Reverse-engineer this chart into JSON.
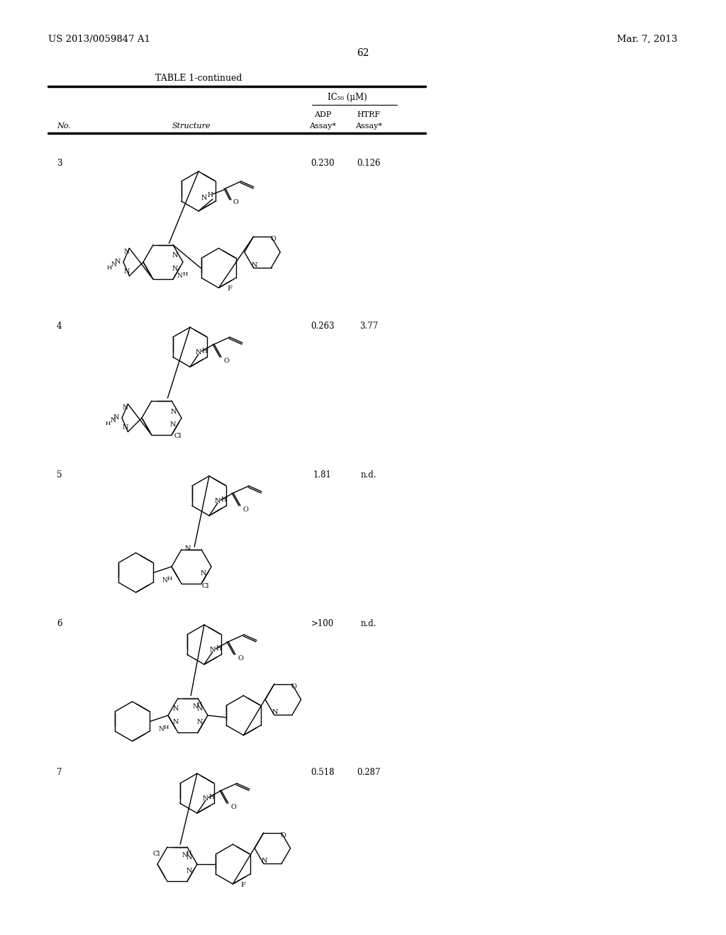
{
  "page_left": "US 2013/0059847 A1",
  "page_right": "Mar. 7, 2013",
  "page_number": "62",
  "table_title": "TABLE 1-continued",
  "ic50_header": "IC₅₀ (μM)",
  "adp_header": "ADP",
  "htrf_header": "HTRF",
  "assay1": "Assay*",
  "assay2": "Assay*",
  "col_no": "No.",
  "col_structure": "Structure",
  "rows": [
    {
      "no": "3",
      "adp": "0.230",
      "htrf": "0.126"
    },
    {
      "no": "4",
      "adp": "0.263",
      "htrf": "3.77"
    },
    {
      "no": "5",
      "adp": "1.81",
      "htrf": "n.d."
    },
    {
      "no": "6",
      "adp": ">100",
      "htrf": "n.d."
    },
    {
      "no": "7",
      "adp": "0.518",
      "htrf": "0.287"
    }
  ],
  "bg_color": "#ffffff"
}
